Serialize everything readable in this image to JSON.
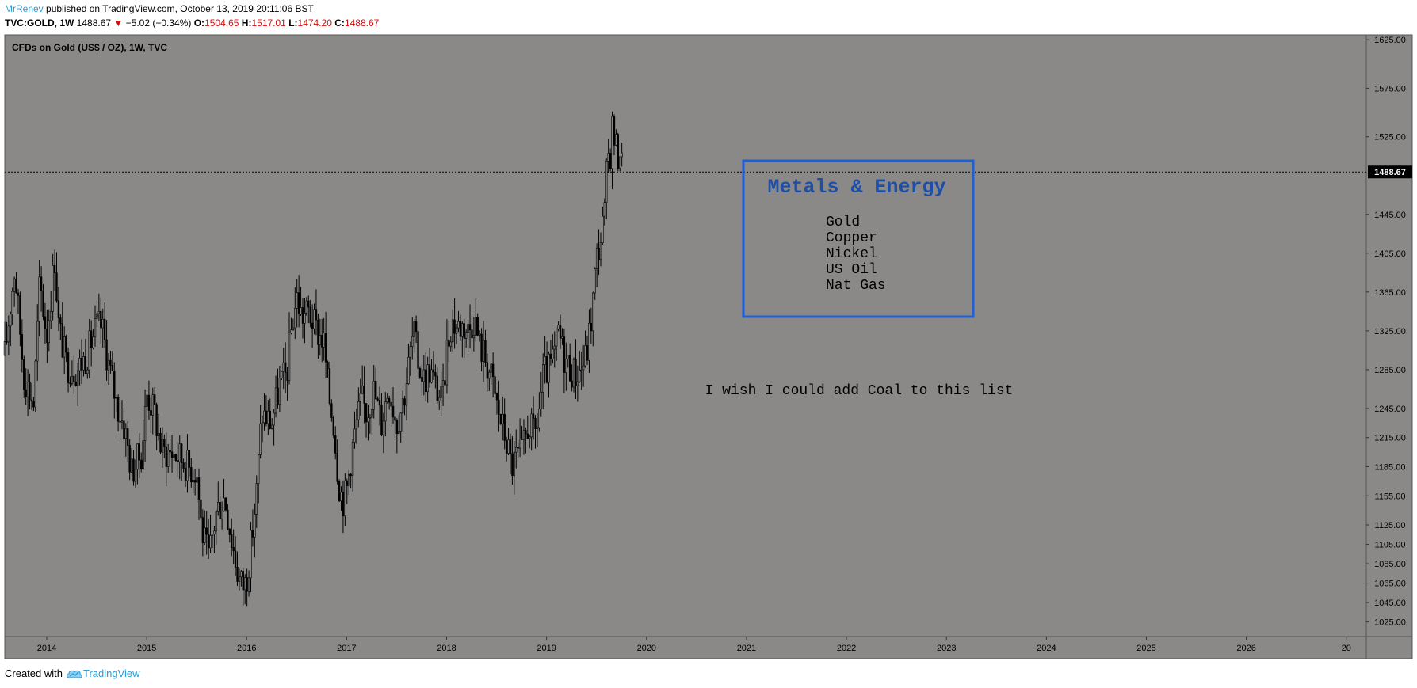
{
  "header": {
    "author": "MrRenev",
    "published_text": "published on TradingView.com, October 13, 2019 20:11:06 BST",
    "symbol": "TVC:GOLD, 1W",
    "last_price": "1488.67",
    "change": "−5.02 (−0.34%)",
    "o_label": "O:",
    "o_value": "1504.65",
    "h_label": "H:",
    "h_value": "1517.01",
    "l_label": "L:",
    "l_value": "1474.20",
    "c_label": "C:",
    "c_value": "1488.67"
  },
  "colors": {
    "chart_bg": "#8a8988",
    "candles": "#000000",
    "box_border": "#1f5fd8",
    "box_title": "#1d4fa8",
    "header_red": "#d01010",
    "brand_blue": "#2e9cd6"
  },
  "chart_data": {
    "type": "candlestick",
    "title": "CFDs on Gold (US$ / OZ), 1W, TVC",
    "x_ticks": [
      "2014",
      "2015",
      "2016",
      "2017",
      "2018",
      "2019",
      "2020",
      "2021",
      "2022",
      "2023",
      "2024",
      "2025",
      "2026",
      "20"
    ],
    "y_ticks": [
      "1625.00",
      "1575.00",
      "1525.00",
      "1445.00",
      "1405.00",
      "1365.00",
      "1325.00",
      "1285.00",
      "1245.00",
      "1215.00",
      "1185.00",
      "1155.00",
      "1125.00",
      "1105.00",
      "1085.00",
      "1065.00",
      "1045.00",
      "1025.00"
    ],
    "ylim": [
      1010,
      1630
    ],
    "x_range": [
      2013.58,
      2027.2
    ],
    "current_price_label": "1488.67",
    "current_price": 1488.67,
    "price_path": [
      [
        2013.58,
        1300
      ],
      [
        2013.68,
        1390
      ],
      [
        2013.77,
        1280
      ],
      [
        2013.87,
        1250
      ],
      [
        2013.93,
        1375
      ],
      [
        2014.0,
        1320
      ],
      [
        2014.08,
        1400
      ],
      [
        2014.12,
        1330
      ],
      [
        2014.2,
        1290
      ],
      [
        2014.3,
        1285
      ],
      [
        2014.4,
        1300
      ],
      [
        2014.5,
        1330
      ],
      [
        2014.55,
        1330
      ],
      [
        2014.62,
        1290
      ],
      [
        2014.7,
        1250
      ],
      [
        2014.78,
        1225
      ],
      [
        2014.85,
        1180
      ],
      [
        2014.95,
        1200
      ],
      [
        2015.0,
        1260
      ],
      [
        2015.08,
        1240
      ],
      [
        2015.15,
        1200
      ],
      [
        2015.25,
        1200
      ],
      [
        2015.33,
        1195
      ],
      [
        2015.42,
        1185
      ],
      [
        2015.5,
        1180
      ],
      [
        2015.55,
        1120
      ],
      [
        2015.62,
        1090
      ],
      [
        2015.7,
        1140
      ],
      [
        2015.78,
        1155
      ],
      [
        2015.85,
        1110
      ],
      [
        2015.92,
        1070
      ],
      [
        2015.97,
        1062
      ],
      [
        2016.0,
        1070
      ],
      [
        2016.05,
        1110
      ],
      [
        2016.1,
        1160
      ],
      [
        2016.15,
        1240
      ],
      [
        2016.25,
        1230
      ],
      [
        2016.33,
        1270
      ],
      [
        2016.4,
        1280
      ],
      [
        2016.45,
        1330
      ],
      [
        2016.5,
        1360
      ],
      [
        2016.55,
        1340
      ],
      [
        2016.62,
        1345
      ],
      [
        2016.7,
        1325
      ],
      [
        2016.77,
        1315
      ],
      [
        2016.82,
        1260
      ],
      [
        2016.87,
        1230
      ],
      [
        2016.92,
        1170
      ],
      [
        2016.96,
        1150
      ],
      [
        2017.0,
        1160
      ],
      [
        2017.05,
        1200
      ],
      [
        2017.1,
        1230
      ],
      [
        2017.15,
        1255
      ],
      [
        2017.2,
        1240
      ],
      [
        2017.27,
        1265
      ],
      [
        2017.35,
        1230
      ],
      [
        2017.42,
        1270
      ],
      [
        2017.5,
        1230
      ],
      [
        2017.57,
        1255
      ],
      [
        2017.62,
        1290
      ],
      [
        2017.67,
        1325
      ],
      [
        2017.72,
        1290
      ],
      [
        2017.78,
        1275
      ],
      [
        2017.83,
        1285
      ],
      [
        2017.9,
        1265
      ],
      [
        2017.96,
        1250
      ],
      [
        2018.0,
        1305
      ],
      [
        2018.05,
        1335
      ],
      [
        2018.1,
        1330
      ],
      [
        2018.17,
        1330
      ],
      [
        2018.22,
        1325
      ],
      [
        2018.28,
        1340
      ],
      [
        2018.33,
        1310
      ],
      [
        2018.38,
        1300
      ],
      [
        2018.45,
        1275
      ],
      [
        2018.5,
        1250
      ],
      [
        2018.55,
        1230
      ],
      [
        2018.6,
        1210
      ],
      [
        2018.65,
        1185
      ],
      [
        2018.7,
        1195
      ],
      [
        2018.76,
        1200
      ],
      [
        2018.82,
        1230
      ],
      [
        2018.88,
        1215
      ],
      [
        2018.92,
        1240
      ],
      [
        2018.97,
        1280
      ],
      [
        2019.03,
        1285
      ],
      [
        2019.08,
        1300
      ],
      [
        2019.12,
        1325
      ],
      [
        2019.17,
        1300
      ],
      [
        2019.22,
        1290
      ],
      [
        2019.28,
        1280
      ],
      [
        2019.34,
        1285
      ],
      [
        2019.4,
        1300
      ],
      [
        2019.45,
        1340
      ],
      [
        2019.5,
        1400
      ],
      [
        2019.54,
        1420
      ],
      [
        2019.58,
        1445
      ],
      [
        2019.61,
        1505
      ],
      [
        2019.64,
        1510
      ],
      [
        2019.66,
        1540
      ],
      [
        2019.68,
        1520
      ],
      [
        2019.71,
        1505
      ],
      [
        2019.74,
        1515
      ],
      [
        2019.76,
        1488
      ]
    ],
    "annotations": {
      "box_title": "Metals & Energy",
      "box_items": [
        "Gold",
        "Copper",
        "Nickel",
        "US Oil",
        "Nat Gas"
      ],
      "note": "I wish I could add Coal to this list"
    }
  },
  "footer": {
    "created_with": "Created with",
    "brand": "TradingView"
  }
}
